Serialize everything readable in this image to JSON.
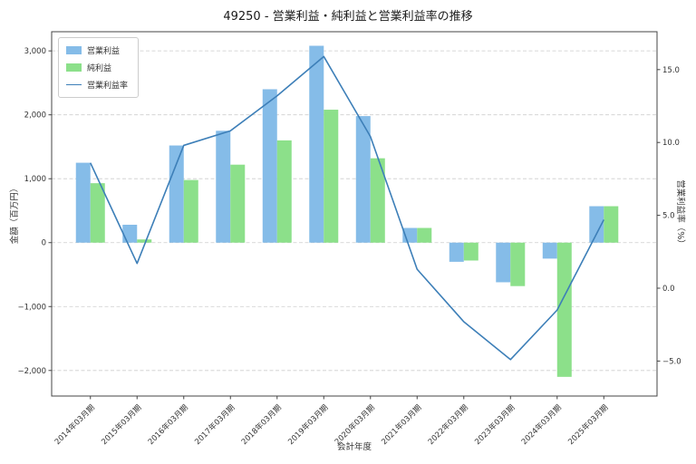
{
  "chart_data": {
    "type": "bar+line",
    "title": "49250 - 営業利益・純利益と営業利益率の推移",
    "xlabel": "会計年度",
    "ylabel_left": "金額（百万円）",
    "ylabel_right": "営業利益率（%）",
    "categories": [
      "2014年03月期",
      "2015年03月期",
      "2016年03月期",
      "2017年03月期",
      "2018年03月期",
      "2019年03月期",
      "2020年03月期",
      "2021年03月期",
      "2022年03月期",
      "2023年03月期",
      "2024年03月期",
      "2025年03月期"
    ],
    "series": [
      {
        "name": "営業利益",
        "type": "bar",
        "axis": "left",
        "color": "#85bce8",
        "values": [
          1250,
          280,
          1520,
          1750,
          2400,
          3080,
          1980,
          230,
          -300,
          -620,
          -250,
          570
        ]
      },
      {
        "name": "純利益",
        "type": "bar",
        "axis": "left",
        "color": "#8ce08a",
        "values": [
          930,
          50,
          980,
          1220,
          1600,
          2080,
          1320,
          230,
          -280,
          -680,
          -2100,
          570
        ]
      },
      {
        "name": "営業利益率",
        "type": "line",
        "axis": "right",
        "color": "#3d7fb8",
        "values": [
          8.6,
          1.7,
          9.8,
          10.8,
          13.2,
          15.9,
          10.4,
          1.3,
          -2.3,
          -4.9,
          -1.5,
          4.7
        ]
      }
    ],
    "left_axis": {
      "lim": [
        -2400,
        3300
      ],
      "ticks": [
        {
          "v": 3000,
          "label": "3,000"
        },
        {
          "v": 2000,
          "label": "2,000"
        },
        {
          "v": 1000,
          "label": "1,000"
        },
        {
          "v": 0,
          "label": "0"
        },
        {
          "v": -1000,
          "label": "−1,000"
        },
        {
          "v": -2000,
          "label": "−2,000"
        }
      ]
    },
    "right_axis": {
      "lim": [
        -7.4,
        17.6
      ],
      "ticks": [
        {
          "v": 15,
          "label": "15.0"
        },
        {
          "v": 10,
          "label": "10.0"
        },
        {
          "v": 5,
          "label": "5.0"
        },
        {
          "v": 0,
          "label": "0.0"
        },
        {
          "v": -5,
          "label": "−5.0"
        }
      ]
    },
    "grid": "horizontal-dashed",
    "legend_position": "upper-left"
  }
}
